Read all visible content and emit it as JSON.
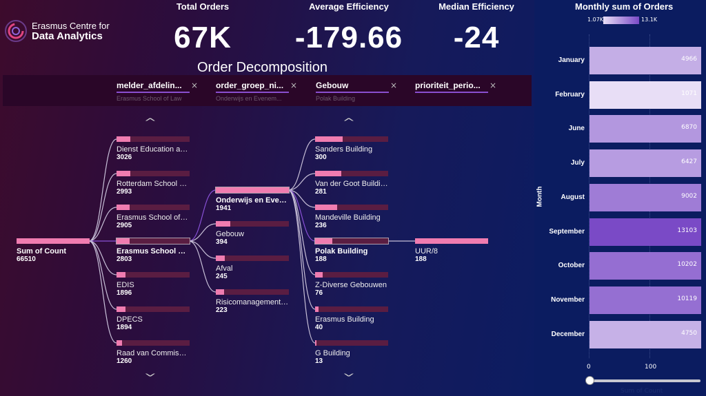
{
  "logo": {
    "line1": "Erasmus Centre for",
    "line2": "Data Analytics"
  },
  "kpis": [
    {
      "label": "Total Orders",
      "value": "67K"
    },
    {
      "label": "Average Efficiency",
      "value": "-179.66"
    },
    {
      "label": "Median Efficiency",
      "value": "-24"
    }
  ],
  "title": "Order Decomposition",
  "filters": [
    {
      "name": "melder_afdelin...",
      "value": "Erasmus School of Law"
    },
    {
      "name": "order_groep_ni...",
      "value": "Onderwijs en Evenem..."
    },
    {
      "name": "Gebouw",
      "value": "Polak Building"
    },
    {
      "name": "prioriteit_perio...",
      "value": ""
    }
  ],
  "close_glyph": "×",
  "tree": {
    "root": {
      "label": "Sum of Count",
      "value": "66510",
      "fill": 1
    },
    "levels": [
      [
        {
          "label": "Dienst Education an...",
          "value": "3026",
          "fill": 0.19
        },
        {
          "label": "Rotterdam School o...",
          "value": "2993",
          "fill": 0.19
        },
        {
          "label": "Erasmus School of E...",
          "value": "2905",
          "fill": 0.18
        },
        {
          "label": "Erasmus School of ...",
          "value": "2803",
          "fill": 0.18,
          "selected": true
        },
        {
          "label": "EDIS",
          "value": "1896",
          "fill": 0.12
        },
        {
          "label": "DPECS",
          "value": "1894",
          "fill": 0.12
        },
        {
          "label": "Raad van Commissa...",
          "value": "1260",
          "fill": 0.08
        }
      ],
      [
        {
          "label": "Onderwijs en Even...",
          "value": "1941",
          "fill": 1,
          "selected": true
        },
        {
          "label": "Gebouw",
          "value": "394",
          "fill": 0.2
        },
        {
          "label": "Afval",
          "value": "245",
          "fill": 0.12
        },
        {
          "label": "Risicomanagement ...",
          "value": "223",
          "fill": 0.11
        }
      ],
      [
        {
          "label": "Sanders Building",
          "value": "300",
          "fill": 0.38
        },
        {
          "label": "Van der Goot Building",
          "value": "281",
          "fill": 0.36
        },
        {
          "label": "Mandeville Building",
          "value": "236",
          "fill": 0.3
        },
        {
          "label": "Polak Building",
          "value": "188",
          "fill": 0.24,
          "selected": true
        },
        {
          "label": "Z-Diverse Gebouwen",
          "value": "76",
          "fill": 0.1
        },
        {
          "label": "Erasmus Building",
          "value": "40",
          "fill": 0.05
        },
        {
          "label": "G Building",
          "value": "13",
          "fill": 0.02
        }
      ],
      [
        {
          "label": "UUR/8",
          "value": "188",
          "fill": 1
        }
      ]
    ]
  },
  "chart_data": {
    "type": "bar",
    "title": "Monthly sum of Orders",
    "legend": {
      "min": "1.07K",
      "max": "13.1K",
      "min_color": "#e8def6",
      "max_color": "#7a4ac6"
    },
    "categories": [
      "January",
      "February",
      "June",
      "July",
      "August",
      "September",
      "October",
      "November",
      "December"
    ],
    "values": [
      4966,
      1071,
      6870,
      6427,
      9002,
      13103,
      10202,
      10119,
      4750
    ],
    "ylabel": "Month",
    "xlabel": "Sum of Count",
    "xticks": [
      "0",
      "100"
    ]
  }
}
